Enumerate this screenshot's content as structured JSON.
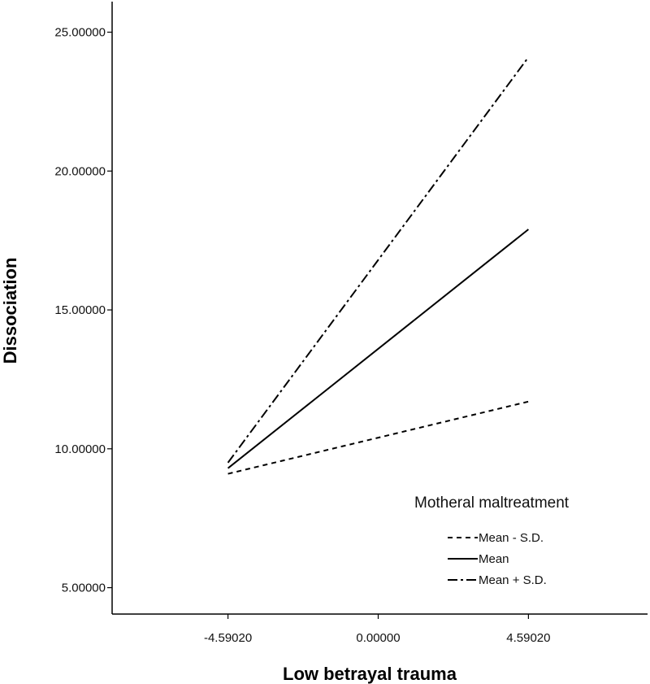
{
  "chart_data": {
    "type": "line",
    "xlabel": "Low betrayal trauma",
    "ylabel": "Dissociation",
    "x": [
      -4.5902,
      4.5902
    ],
    "x_tick_labels": [
      "-4.59020",
      "0.00000",
      "4.59020"
    ],
    "x_ticks": [
      -4.5902,
      0,
      4.5902
    ],
    "y_tick_labels": [
      "5.00000",
      "10.00000",
      "15.00000",
      "20.00000",
      "25.00000"
    ],
    "y_ticks": [
      5,
      10,
      15,
      20,
      25
    ],
    "xlim": [
      -8.13,
      8.23
    ],
    "ylim": [
      4.05,
      26.1
    ],
    "grid": false,
    "legend": {
      "title": "Motheral maltreatment",
      "position": "bottom-right"
    },
    "series": [
      {
        "name": "Mean - S.D.",
        "dash": "6,5",
        "values": [
          9.1,
          11.7
        ]
      },
      {
        "name": "Mean",
        "dash": "",
        "values": [
          9.3,
          17.9
        ]
      },
      {
        "name": "Mean + S.D.",
        "dash": "12,4,3,4",
        "values": [
          9.5,
          24.1
        ]
      }
    ],
    "color": "#000000"
  }
}
